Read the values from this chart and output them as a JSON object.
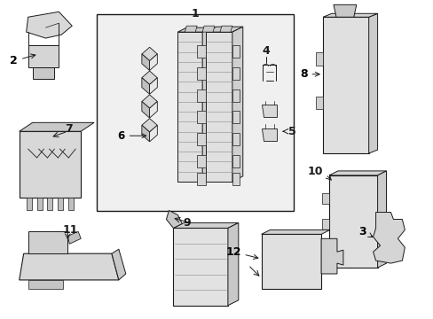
{
  "background_color": "#ffffff",
  "fig_width": 4.89,
  "fig_height": 3.6,
  "dpi": 100,
  "line_color": "#1a1a1a",
  "fill_light": "#e8e8e8",
  "fill_box": "#efefef",
  "label_fontsize": 8.5
}
